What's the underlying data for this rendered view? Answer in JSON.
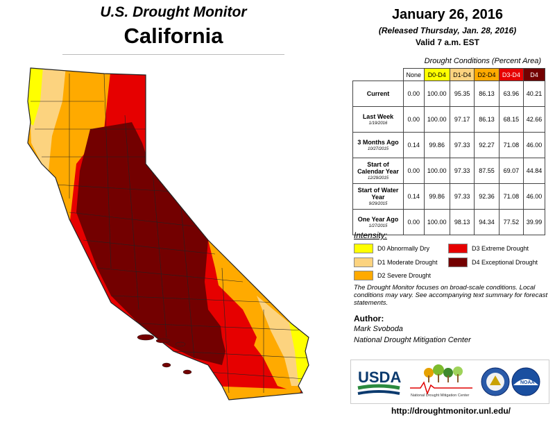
{
  "header": {
    "title": "U.S. Drought Monitor",
    "state": "California"
  },
  "date": {
    "main": "January 26, 2016",
    "released": "(Released Thursday, Jan. 28, 2016)",
    "valid": "Valid 7 a.m. EST"
  },
  "table": {
    "caption": "Drought Conditions (Percent Area)",
    "columns": [
      {
        "label": "None",
        "color": "#ffffff",
        "text": "#000000"
      },
      {
        "label": "D0-D4",
        "color": "#ffff00",
        "text": "#000000"
      },
      {
        "label": "D1-D4",
        "color": "#fcd37f",
        "text": "#000000"
      },
      {
        "label": "D2-D4",
        "color": "#ffaa00",
        "text": "#000000"
      },
      {
        "label": "D3-D4",
        "color": "#e60000",
        "text": "#ffffff"
      },
      {
        "label": "D4",
        "color": "#730000",
        "text": "#ffffff"
      }
    ],
    "rows": [
      {
        "label": "Current",
        "sub": "",
        "values": [
          "0.00",
          "100.00",
          "95.35",
          "86.13",
          "63.96",
          "40.21"
        ]
      },
      {
        "label": "Last Week",
        "sub": "1/19/2016",
        "values": [
          "0.00",
          "100.00",
          "97.17",
          "86.13",
          "68.15",
          "42.66"
        ]
      },
      {
        "label": "3 Months Ago",
        "sub": "10/27/2015",
        "values": [
          "0.14",
          "99.86",
          "97.33",
          "92.27",
          "71.08",
          "46.00"
        ]
      },
      {
        "label": "Start of Calendar Year",
        "sub": "12/29/2015",
        "values": [
          "0.00",
          "100.00",
          "97.33",
          "87.55",
          "69.07",
          "44.84"
        ]
      },
      {
        "label": "Start of Water Year",
        "sub": "9/29/2015",
        "values": [
          "0.14",
          "99.86",
          "97.33",
          "92.36",
          "71.08",
          "46.00"
        ]
      },
      {
        "label": "One Year Ago",
        "sub": "1/27/2015",
        "values": [
          "0.00",
          "100.00",
          "98.13",
          "94.34",
          "77.52",
          "39.99"
        ]
      }
    ]
  },
  "legend": {
    "title": "Intensity:",
    "items": [
      {
        "label": "D0 Abnormally Dry",
        "color": "#ffff00"
      },
      {
        "label": "D1 Moderate Drought",
        "color": "#fcd37f"
      },
      {
        "label": "D2 Severe Drought",
        "color": "#ffaa00"
      },
      {
        "label": "D3 Extreme Drought",
        "color": "#e60000"
      },
      {
        "label": "D4 Exceptional Drought",
        "color": "#730000"
      }
    ]
  },
  "note": "The Drought Monitor focuses on broad-scale conditions. Local conditions may vary. See accompanying text summary for forecast statements.",
  "author": {
    "heading": "Author:",
    "name": "Mark Svoboda",
    "org": "National Drought Mitigation Center"
  },
  "logos": {
    "usda": "USDA",
    "ndmc": "National Drought Mitigation Center",
    "noaa": "NOAA"
  },
  "url": "http://droughtmonitor.unl.edu/"
}
